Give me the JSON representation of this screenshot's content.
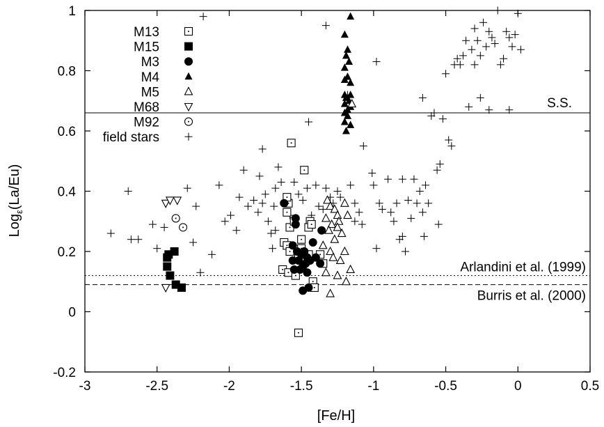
{
  "chart_data": {
    "type": "scatter",
    "xlabel": "[Fe/H]",
    "ylabel": "Log",
    "ylabel_sub": "ε",
    "ylabel_tail": "(La/Eu)",
    "xlim": [
      -3,
      0.5
    ],
    "ylim": [
      -0.2,
      1.0
    ],
    "xticks": [
      -3,
      -2.5,
      -2,
      -1.5,
      -1,
      -0.5,
      0,
      0.5
    ],
    "xtick_labels": [
      "-3",
      "-2.5",
      "-2",
      "-1.5",
      "-1",
      "-0.5",
      "0",
      "0.5"
    ],
    "yticks": [
      -0.2,
      0,
      0.2,
      0.4,
      0.6,
      0.8,
      1
    ],
    "ytick_labels": [
      "-0.2",
      "0",
      "0.2",
      "0.4",
      "0.6",
      "0.8",
      "1"
    ],
    "grid": false,
    "legend_position": "top-left",
    "reference_lines": [
      {
        "label": "S.S.",
        "y": 0.66,
        "style": "solid"
      },
      {
        "label": "Arlandini et al. (1999)",
        "y": 0.12,
        "style": "dotted"
      },
      {
        "label": "Burris et al. (2000)",
        "y": 0.09,
        "style": "dashed"
      }
    ],
    "series": [
      {
        "name": "M13",
        "marker": "square-dot",
        "points": [
          [
            -1.57,
            0.56
          ],
          [
            -1.59,
            0.36
          ],
          [
            -1.6,
            0.33
          ],
          [
            -1.62,
            0.23
          ],
          [
            -1.6,
            0.22
          ],
          [
            -1.58,
            0.2
          ],
          [
            -1.63,
            0.14
          ],
          [
            -1.59,
            0.13
          ],
          [
            -1.58,
            0.28
          ],
          [
            -1.6,
            0.38
          ],
          [
            -1.48,
            0.47
          ],
          [
            -1.44,
            0.3
          ],
          [
            -1.45,
            0.28
          ],
          [
            -1.5,
            0.21
          ],
          [
            -1.52,
            0.18
          ],
          [
            -1.42,
            0.1
          ],
          [
            -1.41,
            0.08
          ],
          [
            -1.37,
            0.19
          ],
          [
            -1.35,
            0.16
          ],
          [
            -1.5,
            0.24
          ],
          [
            -1.52,
            -0.07
          ],
          [
            -1.55,
            0.3
          ],
          [
            -1.43,
            0.29
          ],
          [
            -1.45,
            0.19
          ],
          [
            -1.54,
            0.12
          ]
        ]
      },
      {
        "name": "M15",
        "marker": "filled-square",
        "points": [
          [
            -2.42,
            0.19
          ],
          [
            -2.38,
            0.2
          ],
          [
            -2.43,
            0.15
          ],
          [
            -2.41,
            0.12
          ],
          [
            -2.37,
            0.09
          ],
          [
            -2.33,
            0.08
          ],
          [
            -2.43,
            0.18
          ]
        ]
      },
      {
        "name": "M3",
        "marker": "filled-circle",
        "points": [
          [
            -1.62,
            0.36
          ],
          [
            -1.54,
            0.31
          ],
          [
            -1.54,
            0.29
          ],
          [
            -1.36,
            0.27
          ],
          [
            -1.42,
            0.23
          ],
          [
            -1.56,
            0.22
          ],
          [
            -1.53,
            0.2
          ],
          [
            -1.5,
            0.19
          ],
          [
            -1.48,
            0.2
          ],
          [
            -1.52,
            0.17
          ],
          [
            -1.49,
            0.15
          ],
          [
            -1.46,
            0.13
          ],
          [
            -1.55,
            0.14
          ],
          [
            -1.51,
            0.14
          ],
          [
            -1.46,
            0.18
          ],
          [
            -1.44,
            0.17
          ],
          [
            -1.4,
            0.18
          ],
          [
            -1.37,
            0.16
          ],
          [
            -1.45,
            0.08
          ],
          [
            -1.49,
            0.07
          ],
          [
            -1.56,
            0.17
          ],
          [
            -1.47,
            0.16
          ]
        ]
      },
      {
        "name": "M4",
        "marker": "filled-triangle",
        "points": [
          [
            -1.16,
            0.98
          ],
          [
            -1.2,
            0.92
          ],
          [
            -1.18,
            0.87
          ],
          [
            -1.19,
            0.85
          ],
          [
            -1.17,
            0.83
          ],
          [
            -1.2,
            0.81
          ],
          [
            -1.18,
            0.78
          ],
          [
            -1.2,
            0.77
          ],
          [
            -1.16,
            0.76
          ],
          [
            -1.2,
            0.72
          ],
          [
            -1.16,
            0.72
          ],
          [
            -1.19,
            0.71
          ],
          [
            -1.17,
            0.7
          ],
          [
            -1.2,
            0.69
          ],
          [
            -1.16,
            0.68
          ],
          [
            -1.2,
            0.66
          ],
          [
            -1.18,
            0.65
          ],
          [
            -1.2,
            0.63
          ],
          [
            -1.16,
            0.62
          ],
          [
            -1.19,
            0.6
          ],
          [
            -1.18,
            0.67
          ]
        ]
      },
      {
        "name": "M5",
        "marker": "open-triangle",
        "points": [
          [
            -1.15,
            0.69
          ],
          [
            -1.32,
            0.37
          ],
          [
            -1.3,
            0.35
          ],
          [
            -1.27,
            0.34
          ],
          [
            -1.2,
            0.36
          ],
          [
            -1.25,
            0.32
          ],
          [
            -1.18,
            0.32
          ],
          [
            -1.33,
            0.31
          ],
          [
            -1.24,
            0.3
          ],
          [
            -1.29,
            0.29
          ],
          [
            -1.31,
            0.27
          ],
          [
            -1.22,
            0.26
          ],
          [
            -1.27,
            0.24
          ],
          [
            -1.35,
            0.22
          ],
          [
            -1.3,
            0.2
          ],
          [
            -1.2,
            0.2
          ],
          [
            -1.28,
            0.18
          ],
          [
            -1.23,
            0.17
          ],
          [
            -1.16,
            0.14
          ],
          [
            -1.25,
            0.12
          ],
          [
            -1.19,
            0.1
          ],
          [
            -1.3,
            0.06
          ],
          [
            -1.25,
            0.28
          ],
          [
            -1.33,
            0.13
          ]
        ]
      },
      {
        "name": "M68",
        "marker": "open-triangle-down",
        "points": [
          [
            -2.44,
            0.36
          ],
          [
            -2.41,
            0.37
          ],
          [
            -2.36,
            0.37
          ],
          [
            -2.44,
            0.08
          ]
        ]
      },
      {
        "name": "M92",
        "marker": "circle-dot",
        "points": [
          [
            -2.37,
            0.31
          ],
          [
            -2.32,
            0.28
          ]
        ]
      },
      {
        "name": "field stars",
        "marker": "plus",
        "points": [
          [
            -2.82,
            0.26
          ],
          [
            -2.7,
            0.4
          ],
          [
            -2.68,
            0.24
          ],
          [
            -2.63,
            0.24
          ],
          [
            -2.53,
            0.29
          ],
          [
            -2.5,
            0.21
          ],
          [
            -2.45,
            0.28
          ],
          [
            -2.29,
            0.41
          ],
          [
            -2.25,
            0.23
          ],
          [
            -2.23,
            0.35
          ],
          [
            -2.2,
            0.13
          ],
          [
            -2.12,
            0.19
          ],
          [
            -2.07,
            0.42
          ],
          [
            -2.03,
            0.3
          ],
          [
            -1.99,
            0.32
          ],
          [
            -1.95,
            0.27
          ],
          [
            -1.93,
            0.38
          ],
          [
            -1.9,
            0.47
          ],
          [
            -1.87,
            0.35
          ],
          [
            -1.83,
            0.37
          ],
          [
            -1.8,
            0.33
          ],
          [
            -1.79,
            0.45
          ],
          [
            -1.77,
            0.36
          ],
          [
            -1.75,
            0.39
          ],
          [
            -1.73,
            0.3
          ],
          [
            -1.71,
            0.26
          ],
          [
            -1.69,
            0.35
          ],
          [
            -1.68,
            0.41
          ],
          [
            -1.66,
            0.48
          ],
          [
            -1.64,
            0.43
          ],
          [
            -1.61,
            0.37
          ],
          [
            -1.58,
            0.32
          ],
          [
            -1.55,
            0.43
          ],
          [
            -1.52,
            0.39
          ],
          [
            -1.49,
            0.37
          ],
          [
            -1.46,
            0.41
          ],
          [
            -1.43,
            0.32
          ],
          [
            -1.4,
            0.42
          ],
          [
            -1.38,
            0.35
          ],
          [
            -1.35,
            0.34
          ],
          [
            -1.33,
            0.41
          ],
          [
            -1.3,
            0.38
          ],
          [
            -1.28,
            0.36
          ],
          [
            -1.25,
            0.4
          ],
          [
            -1.23,
            0.38
          ],
          [
            -1.16,
            0.42
          ],
          [
            -1.13,
            0.36
          ],
          [
            -1.1,
            0.33
          ],
          [
            -1.08,
            0.29
          ],
          [
            -1.13,
            0.3
          ],
          [
            -1.07,
            0.55
          ],
          [
            -1.33,
            0.95
          ],
          [
            -1.45,
            0.63
          ],
          [
            -1.18,
            0.72
          ],
          [
            -1.01,
            0.46
          ],
          [
            -1.0,
            0.42
          ],
          [
            -0.98,
            0.83
          ],
          [
            -0.96,
            0.36
          ],
          [
            -0.94,
            0.34
          ],
          [
            -0.9,
            0.44
          ],
          [
            -0.88,
            0.33
          ],
          [
            -0.86,
            0.3
          ],
          [
            -0.84,
            0.36
          ],
          [
            -0.82,
            0.24
          ],
          [
            -0.8,
            0.44
          ],
          [
            -0.78,
            0.2
          ],
          [
            -0.76,
            0.37
          ],
          [
            -0.74,
            0.31
          ],
          [
            -0.72,
            0.44
          ],
          [
            -0.7,
            0.36
          ],
          [
            -0.68,
            0.4
          ],
          [
            -0.66,
            0.33
          ],
          [
            -0.64,
            0.42
          ],
          [
            -0.62,
            0.36
          ],
          [
            -0.6,
            0.65
          ],
          [
            -0.58,
            0.66
          ],
          [
            -0.56,
            0.47
          ],
          [
            -0.55,
            0.29
          ],
          [
            -0.54,
            0.49
          ],
          [
            -0.52,
            0.64
          ],
          [
            -0.5,
            0.79
          ],
          [
            -0.48,
            0.57
          ],
          [
            -0.46,
            0.55
          ],
          [
            -0.44,
            0.82
          ],
          [
            -0.42,
            0.84
          ],
          [
            -0.4,
            0.82
          ],
          [
            -0.38,
            0.85
          ],
          [
            -0.36,
            0.9
          ],
          [
            -0.34,
            0.68
          ],
          [
            -0.32,
            0.87
          ],
          [
            -0.3,
            0.82
          ],
          [
            -0.28,
            0.9
          ],
          [
            -0.26,
            0.85
          ],
          [
            -0.24,
            0.96
          ],
          [
            -0.22,
            0.88
          ],
          [
            -0.2,
            0.93
          ],
          [
            -0.18,
            0.91
          ],
          [
            -0.16,
            0.89
          ],
          [
            -0.14,
            1.0
          ],
          [
            -0.12,
            0.82
          ],
          [
            -0.1,
            0.84
          ],
          [
            -0.08,
            0.93
          ],
          [
            -0.06,
            0.91
          ],
          [
            -0.04,
            0.88
          ],
          [
            -0.02,
            0.92
          ],
          [
            0.0,
            0.99
          ],
          [
            0.02,
            0.87
          ],
          [
            -0.2,
            0.67
          ],
          [
            -0.06,
            0.67
          ],
          [
            -0.26,
            0.71
          ],
          [
            -0.66,
            0.71
          ],
          [
            -0.8,
            0.25
          ],
          [
            -0.65,
            0.25
          ],
          [
            -0.98,
            0.21
          ],
          [
            -1.68,
            0.27
          ],
          [
            -1.7,
            0.21
          ],
          [
            -1.77,
            0.54
          ],
          [
            -2.18,
            0.98
          ],
          [
            -0.3,
            0.94
          ]
        ]
      }
    ]
  }
}
